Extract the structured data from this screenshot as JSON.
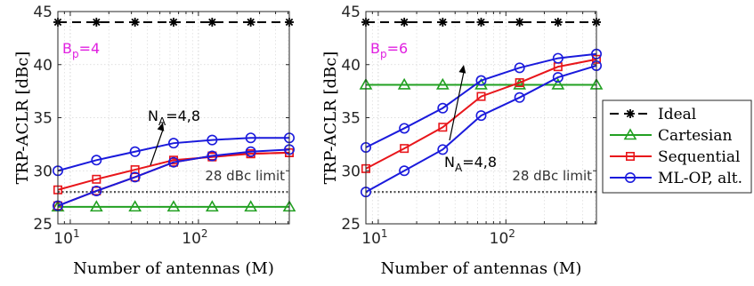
{
  "chart_data": [
    {
      "type": "line",
      "xscale": "log",
      "xlabel": "Number of antennas (M)",
      "ylabel": "TRP-ACLR [dBc]",
      "xlim": [
        8,
        512
      ],
      "ylim": [
        25,
        45
      ],
      "yticks": [
        25,
        30,
        35,
        40,
        45
      ],
      "xticks": [
        {
          "value": 10,
          "base": "10",
          "exp": "1"
        },
        {
          "value": 100,
          "base": "10",
          "exp": "2"
        }
      ],
      "grid": true,
      "panel_label": {
        "main": "B",
        "sub": "p",
        "rest": "=4"
      },
      "limit_line": {
        "value": 28,
        "label": "28 dBc limit"
      },
      "arrow_label": {
        "main": "N",
        "sub": "A",
        "rest": "=4,8"
      },
      "x": [
        8,
        16,
        32,
        64,
        128,
        256,
        512
      ],
      "series": [
        {
          "name": "Ideal",
          "color": "#000000",
          "dash": "10,6",
          "marker": "asterisk",
          "values": [
            44,
            44,
            44,
            44,
            44,
            44,
            44
          ]
        },
        {
          "name": "Cartesian",
          "color": "#22a022",
          "dash": "",
          "marker": "triangle",
          "values": [
            26.6,
            26.6,
            26.6,
            26.6,
            26.6,
            26.6,
            26.6
          ]
        },
        {
          "name": "Sequential",
          "color": "#e8161b",
          "dash": "",
          "marker": "square",
          "values": [
            28.2,
            29.2,
            30.1,
            31.0,
            31.3,
            31.6,
            31.7
          ]
        },
        {
          "name": "Sequential",
          "color": "#e8161b",
          "dash": "",
          "marker": "square",
          "values": [
            26.7,
            28.1,
            29.4,
            30.8,
            31.4,
            31.6,
            31.7
          ]
        },
        {
          "name": "ML-OP, alt.",
          "color": "#1a1adc",
          "dash": "",
          "marker": "circle",
          "values": [
            30.0,
            31.0,
            31.8,
            32.6,
            32.9,
            33.1,
            33.1
          ]
        },
        {
          "name": "ML-OP, alt.",
          "color": "#1a1adc",
          "dash": "",
          "marker": "circle",
          "values": [
            26.7,
            28.1,
            29.4,
            30.8,
            31.4,
            31.8,
            32.0
          ]
        }
      ]
    },
    {
      "type": "line",
      "xscale": "log",
      "xlabel": "Number of antennas (M)",
      "ylabel": "TRP-ACLR [dBc]",
      "xlim": [
        8,
        512
      ],
      "ylim": [
        25,
        45
      ],
      "yticks": [
        25,
        30,
        35,
        40,
        45
      ],
      "xticks": [
        {
          "value": 10,
          "base": "10",
          "exp": "1"
        },
        {
          "value": 100,
          "base": "10",
          "exp": "2"
        }
      ],
      "grid": true,
      "panel_label": {
        "main": "B",
        "sub": "p",
        "rest": "=6"
      },
      "limit_line": {
        "value": 28,
        "label": "28 dBc limit"
      },
      "arrow_label": {
        "main": "N",
        "sub": "A",
        "rest": "=4,8"
      },
      "x": [
        8,
        16,
        32,
        64,
        128,
        256,
        512
      ],
      "series": [
        {
          "name": "Ideal",
          "color": "#000000",
          "dash": "10,6",
          "marker": "asterisk",
          "values": [
            44,
            44,
            44,
            44,
            44,
            44,
            44
          ]
        },
        {
          "name": "Cartesian",
          "color": "#22a022",
          "dash": "",
          "marker": "triangle",
          "values": [
            38.1,
            38.1,
            38.1,
            38.1,
            38.1,
            38.1,
            38.1
          ]
        },
        {
          "name": "Sequential",
          "color": "#e8161b",
          "dash": "",
          "marker": "square",
          "values": [
            30.2,
            32.1,
            34.1,
            37.0,
            38.3,
            39.8,
            40.5
          ]
        },
        {
          "name": "ML-OP, alt.",
          "color": "#1a1adc",
          "dash": "",
          "marker": "circle",
          "values": [
            32.2,
            34.0,
            35.9,
            38.5,
            39.7,
            40.6,
            41.0
          ]
        },
        {
          "name": "ML-OP, alt.",
          "color": "#1a1adc",
          "dash": "",
          "marker": "circle",
          "values": [
            28.0,
            30.0,
            32.0,
            35.2,
            36.9,
            38.8,
            39.9
          ]
        }
      ]
    }
  ],
  "legend": [
    {
      "label": "Ideal",
      "color": "#000000",
      "dash": "10,6",
      "marker": "asterisk"
    },
    {
      "label": "Cartesian",
      "color": "#22a022",
      "dash": "",
      "marker": "triangle"
    },
    {
      "label": "Sequential",
      "color": "#e8161b",
      "dash": "",
      "marker": "square"
    },
    {
      "label": "ML-OP, alt.",
      "color": "#1a1adc",
      "dash": "",
      "marker": "circle"
    }
  ],
  "colors": {
    "panel_label": "#e020e0",
    "limit_line": "#555555"
  }
}
